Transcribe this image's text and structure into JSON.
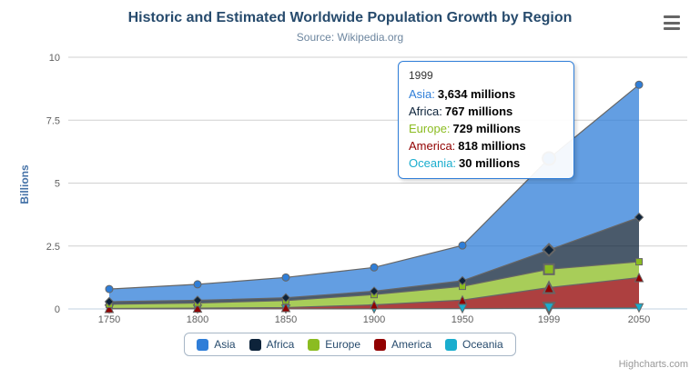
{
  "chart_data": {
    "type": "area",
    "stacking": "normal",
    "title": "Historic and Estimated Worldwide Population Growth by Region",
    "subtitle": "Source: Wikipedia.org",
    "xlabel": "",
    "ylabel": "Billions",
    "categories": [
      1750,
      1800,
      1850,
      1900,
      1950,
      1999,
      2050
    ],
    "yticks": [
      0,
      2.5,
      5,
      7.5,
      10
    ],
    "ylim": [
      0,
      10
    ],
    "values_unit": "millions",
    "grid": true,
    "legend_position": "bottom-center",
    "series": [
      {
        "name": "Asia",
        "color": "#2f7ed8",
        "marker": "circle",
        "values": [
          502,
          635,
          809,
          947,
          1402,
          3634,
          5268
        ]
      },
      {
        "name": "Africa",
        "color": "#0d233a",
        "marker": "diamond",
        "values": [
          106,
          107,
          111,
          133,
          221,
          767,
          1766
        ]
      },
      {
        "name": "Europe",
        "color": "#8bbc21",
        "marker": "square",
        "values": [
          163,
          203,
          276,
          408,
          547,
          729,
          628
        ]
      },
      {
        "name": "America",
        "color": "#910000",
        "marker": "triangle",
        "values": [
          18,
          31,
          54,
          156,
          339,
          818,
          1201
        ]
      },
      {
        "name": "Oceania",
        "color": "#1aadce",
        "marker": "triangle-down",
        "values": [
          2,
          2,
          2,
          6,
          13,
          30,
          46
        ]
      }
    ]
  },
  "tooltip": {
    "header": "1999",
    "border_color": "#2f7ed8",
    "unit": "millions",
    "rows": [
      {
        "name": "Asia",
        "value": "3,634",
        "color": "#2f7ed8"
      },
      {
        "name": "Africa",
        "value": "767",
        "color": "#0d233a"
      },
      {
        "name": "Europe",
        "value": "729",
        "color": "#8bbc21"
      },
      {
        "name": "America",
        "value": "818",
        "color": "#910000"
      },
      {
        "name": "Oceania",
        "value": "30",
        "color": "#1aadce"
      }
    ]
  },
  "credits": "Highcharts.com"
}
